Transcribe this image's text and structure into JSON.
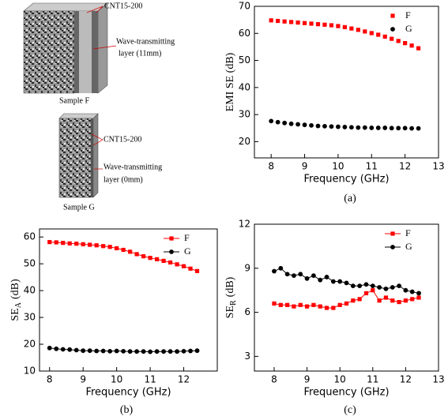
{
  "diagram": {
    "sample_f": {
      "layer1": "CNT15-200",
      "layer2_line1": "Wave-transmitting",
      "layer2_line2": "layer (11mm)",
      "label": "Sample F"
    },
    "sample_g": {
      "layer1": "CNT15-200",
      "layer2_line1": "Wave-transmitting",
      "layer2_line2": "layer (0mm)",
      "label": "Sample G"
    }
  },
  "chart_data": [
    {
      "type": "scatter",
      "panel_label": "(a)",
      "x_label": "Frequency (GHz)",
      "y_label": "EMI SE (dB)",
      "line": false,
      "legend": "upper right",
      "x": [
        8,
        8.2,
        8.4,
        8.6,
        8.8,
        9,
        9.2,
        9.4,
        9.6,
        9.8,
        10,
        10.2,
        10.4,
        10.6,
        10.8,
        11,
        11.2,
        11.4,
        11.6,
        11.8,
        12,
        12.2,
        12.4
      ],
      "series": [
        {
          "name": "F",
          "color": "#ff0000",
          "marker": "square",
          "values": [
            64.8,
            64.6,
            64.4,
            64.2,
            64.0,
            63.8,
            63.6,
            63.4,
            63.2,
            63.0,
            62.7,
            62.3,
            61.8,
            61.3,
            60.7,
            60.1,
            59.5,
            58.8,
            58.0,
            57.2,
            56.4,
            55.5,
            54.5
          ]
        },
        {
          "name": "G",
          "color": "#000000",
          "marker": "circle",
          "values": [
            27.6,
            27.2,
            26.9,
            26.6,
            26.4,
            26.2,
            26.0,
            25.8,
            25.7,
            25.6,
            25.5,
            25.4,
            25.3,
            25.2,
            25.2,
            25.1,
            25.1,
            25.1,
            25.0,
            25.0,
            25.0,
            24.9,
            24.9
          ]
        }
      ],
      "xlim": [
        7.5,
        13
      ],
      "xticks": [
        8,
        9,
        10,
        11,
        12,
        13
      ],
      "ylim": [
        14,
        70
      ],
      "yticks": [
        20,
        30,
        40,
        50,
        60,
        70
      ]
    },
    {
      "type": "scatter",
      "panel_label": "(b)",
      "x_label": "Frequency (GHz)",
      "y_label_parts": [
        "SE",
        "A",
        "(dB)"
      ],
      "line": true,
      "legend": "upper right",
      "x": [
        8,
        8.2,
        8.4,
        8.6,
        8.8,
        9,
        9.2,
        9.4,
        9.6,
        9.8,
        10,
        10.2,
        10.4,
        10.6,
        10.8,
        11,
        11.2,
        11.4,
        11.6,
        11.8,
        12,
        12.2,
        12.4
      ],
      "series": [
        {
          "name": "F",
          "color": "#ff0000",
          "marker": "square",
          "values": [
            58.1,
            58.0,
            57.8,
            57.6,
            57.5,
            57.3,
            57.1,
            56.9,
            56.6,
            56.3,
            55.8,
            55.2,
            54.5,
            53.6,
            52.8,
            52.2,
            51.7,
            51.1,
            50.5,
            49.8,
            49.1,
            48.2,
            47.3
          ]
        },
        {
          "name": "G",
          "color": "#000000",
          "marker": "circle",
          "values": [
            18.6,
            18.3,
            18.1,
            18.0,
            17.8,
            17.6,
            17.6,
            17.5,
            17.5,
            17.4,
            17.5,
            17.4,
            17.3,
            17.3,
            17.3,
            17.2,
            17.3,
            17.3,
            17.3,
            17.3,
            17.4,
            17.5,
            17.6
          ]
        }
      ],
      "xlim": [
        7.7,
        13
      ],
      "xticks": [
        8,
        9,
        10,
        11,
        12
      ],
      "ylim": [
        10,
        63
      ],
      "yticks": [
        10,
        20,
        30,
        40,
        50,
        60
      ]
    },
    {
      "type": "scatter",
      "panel_label": "(c)",
      "x_label": "Frequency (GHz)",
      "y_label_parts": [
        "SE",
        "R",
        "(dB)"
      ],
      "line": true,
      "legend": "upper right",
      "x": [
        8,
        8.2,
        8.4,
        8.6,
        8.8,
        9,
        9.2,
        9.4,
        9.6,
        9.8,
        10,
        10.2,
        10.4,
        10.6,
        10.8,
        11,
        11.2,
        11.4,
        11.6,
        11.8,
        12,
        12.2,
        12.4
      ],
      "series": [
        {
          "name": "F",
          "color": "#ff0000",
          "marker": "square",
          "values": [
            6.6,
            6.5,
            6.5,
            6.4,
            6.5,
            6.4,
            6.5,
            6.4,
            6.3,
            6.3,
            6.5,
            6.6,
            6.8,
            6.9,
            7.3,
            7.5,
            6.8,
            7.0,
            6.8,
            6.7,
            6.8,
            6.9,
            7.0
          ]
        },
        {
          "name": "G",
          "color": "#000000",
          "marker": "circle",
          "values": [
            8.8,
            9.0,
            8.6,
            8.5,
            8.6,
            8.3,
            8.5,
            8.2,
            8.4,
            8.1,
            8.1,
            8.0,
            7.8,
            7.8,
            7.9,
            7.8,
            7.7,
            7.6,
            7.7,
            7.8,
            7.5,
            7.4,
            7.3
          ]
        }
      ],
      "xlim": [
        7.4,
        13
      ],
      "xticks": [
        8,
        9,
        10,
        11,
        12,
        13
      ],
      "ylim": [
        2,
        12
      ],
      "yticks": [
        3,
        6,
        9,
        12
      ]
    }
  ]
}
